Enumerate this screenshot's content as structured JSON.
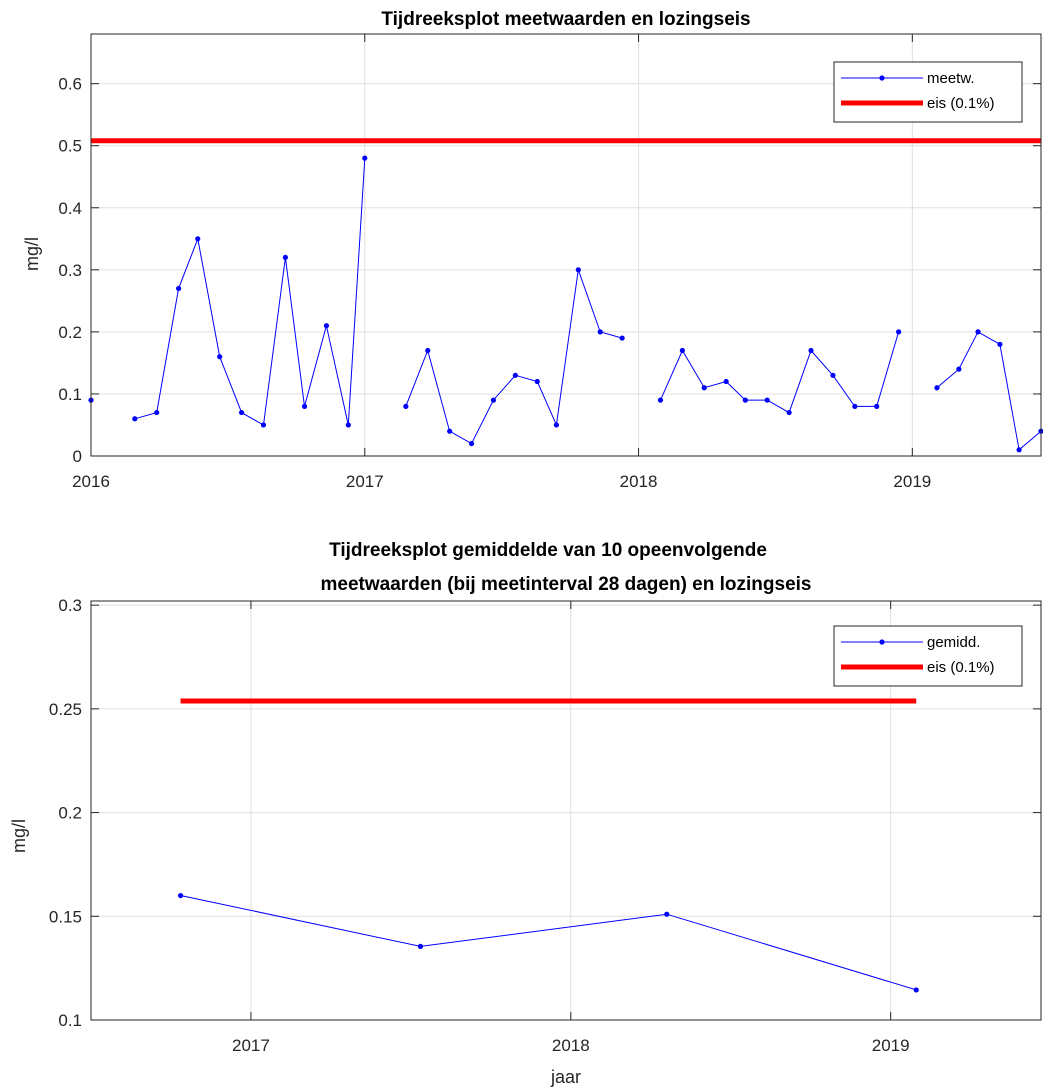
{
  "colors": {
    "measure": "#0000ff",
    "limit": "#ff0000",
    "grid": "#dfdfdf",
    "axis": "#262626"
  },
  "chart_data": [
    {
      "type": "line",
      "title": "Tijdreeksplot meetwaarden en lozingseis",
      "xlabel": "",
      "ylabel": "mg/l",
      "xlim": [
        2016.0,
        2019.47
      ],
      "ylim": [
        0,
        0.68
      ],
      "x_ticks": [
        2016,
        2017,
        2018,
        2019
      ],
      "x_tick_labels": [
        "2016",
        "2017",
        "2018",
        "2019"
      ],
      "y_ticks": [
        0,
        0.1,
        0.2,
        0.3,
        0.4,
        0.5,
        0.6
      ],
      "y_tick_labels": [
        "0",
        "0.1",
        "0.2",
        "0.3",
        "0.4",
        "0.5",
        "0.6"
      ],
      "grid": true,
      "legend_position": "top-right",
      "series": [
        {
          "name": "meetw.",
          "style": "line-marker",
          "segments": [
            {
              "x": [
                2016.0
              ],
              "y": [
                0.09
              ]
            },
            {
              "x": [
                2016.16,
                2016.24,
                2016.32,
                2016.39,
                2016.47,
                2016.55,
                2016.63,
                2016.71,
                2016.78,
                2016.86,
                2016.94,
                2017.0
              ],
              "y": [
                0.06,
                0.07,
                0.27,
                0.35,
                0.16,
                0.07,
                0.05,
                0.32,
                0.08,
                0.21,
                0.05,
                0.48
              ]
            },
            {
              "x": [
                2017.15,
                2017.23,
                2017.31,
                2017.39,
                2017.47,
                2017.55,
                2017.63,
                2017.7,
                2017.78,
                2017.86,
                2017.94
              ],
              "y": [
                0.08,
                0.17,
                0.04,
                0.02,
                0.09,
                0.13,
                0.12,
                0.05,
                0.3,
                0.2,
                0.19
              ]
            },
            {
              "x": [
                2018.08,
                2018.16,
                2018.24,
                2018.32,
                2018.39,
                2018.47,
                2018.55,
                2018.63,
                2018.71,
                2018.79,
                2018.87,
                2018.95
              ],
              "y": [
                0.09,
                0.17,
                0.11,
                0.12,
                0.09,
                0.09,
                0.07,
                0.17,
                0.13,
                0.08,
                0.08,
                0.2
              ]
            },
            {
              "x": [
                2019.09,
                2019.17,
                2019.24,
                2019.32,
                2019.39,
                2019.47
              ],
              "y": [
                0.11,
                0.14,
                0.2,
                0.18,
                0.01,
                0.04
              ]
            }
          ]
        },
        {
          "name": "eis (0.1%)",
          "style": "thick-line",
          "x": [
            2016.0,
            2019.47
          ],
          "y": [
            0.508,
            0.508
          ]
        }
      ]
    },
    {
      "type": "line",
      "title": "Tijdreeksplot gemiddelde van 10 opeenvolgende meetwaarden (bij meetinterval 28 dagen) en lozingseis",
      "title_lines": [
        "Tijdreeksplot gemiddelde van 10 opeenvolgende",
        "meetwaarden (bij meetinterval 28 dagen) en lozingseis"
      ],
      "xlabel": "jaar",
      "ylabel": "mg/l",
      "xlim": [
        2016.5,
        2019.47
      ],
      "ylim": [
        0.1,
        0.302
      ],
      "x_ticks": [
        2017,
        2018,
        2019
      ],
      "x_tick_labels": [
        "2017",
        "2018",
        "2019"
      ],
      "y_ticks": [
        0.1,
        0.15,
        0.2,
        0.25,
        0.3
      ],
      "y_tick_labels": [
        "0.1",
        "0.15",
        "0.2",
        "0.25",
        "0.3"
      ],
      "grid": true,
      "legend_position": "top-right",
      "series": [
        {
          "name": "gemidd.",
          "style": "line-marker",
          "segments": [
            {
              "x": [
                2016.78,
                2017.53,
                2018.3,
                2019.08
              ],
              "y": [
                0.16,
                0.1355,
                0.151,
                0.1145
              ]
            }
          ]
        },
        {
          "name": "eis (0.1%)",
          "style": "thick-line",
          "x": [
            2016.78,
            2019.08
          ],
          "y": [
            0.2538,
            0.2538
          ]
        }
      ]
    }
  ]
}
